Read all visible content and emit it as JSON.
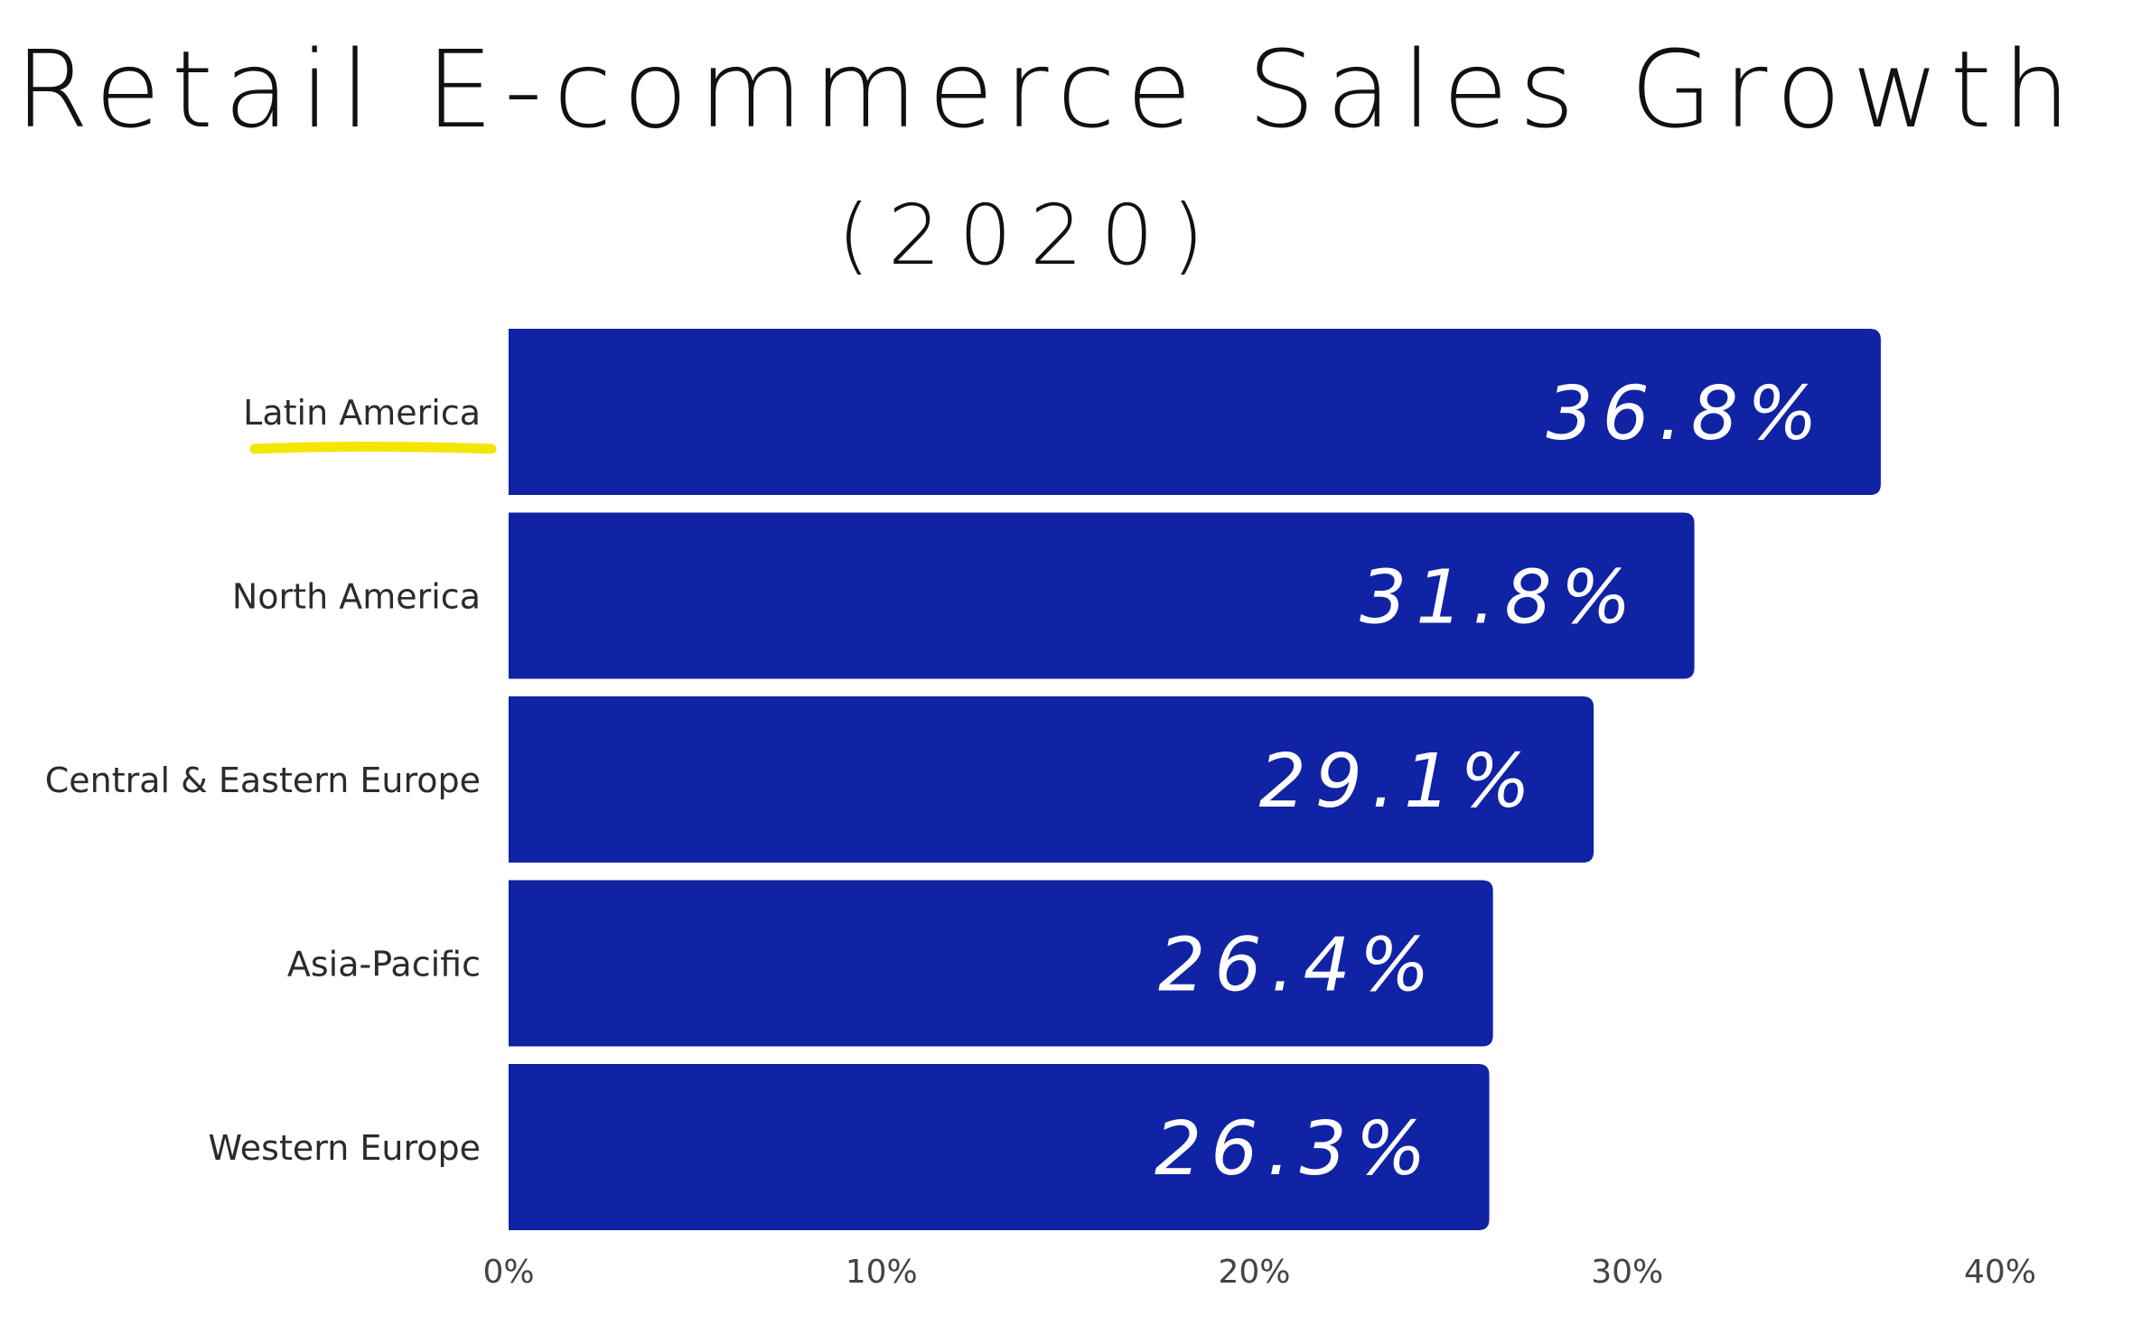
{
  "chart_data": {
    "type": "bar",
    "orientation": "horizontal",
    "title": "Retail E-commerce Sales Growth",
    "subtitle": "(2020)",
    "categories": [
      "Latin America",
      "North America",
      "Central & Eastern Europe",
      "Asia-Pacific",
      "Western Europe"
    ],
    "values": [
      36.8,
      31.8,
      29.1,
      26.4,
      26.3
    ],
    "value_labels": [
      "36.8%",
      "31.8%",
      "29.1%",
      "26.4%",
      "26.3%"
    ],
    "x_ticks": [
      "0%",
      "10%",
      "20%",
      "30%",
      "40%"
    ],
    "xlim": [
      0,
      40
    ],
    "grid": false,
    "legend": "none",
    "highlighted_category": "Latin America",
    "colors": {
      "bar": "#1023a4",
      "highlight": "#f4e600",
      "value_text": "#ffffff"
    }
  }
}
